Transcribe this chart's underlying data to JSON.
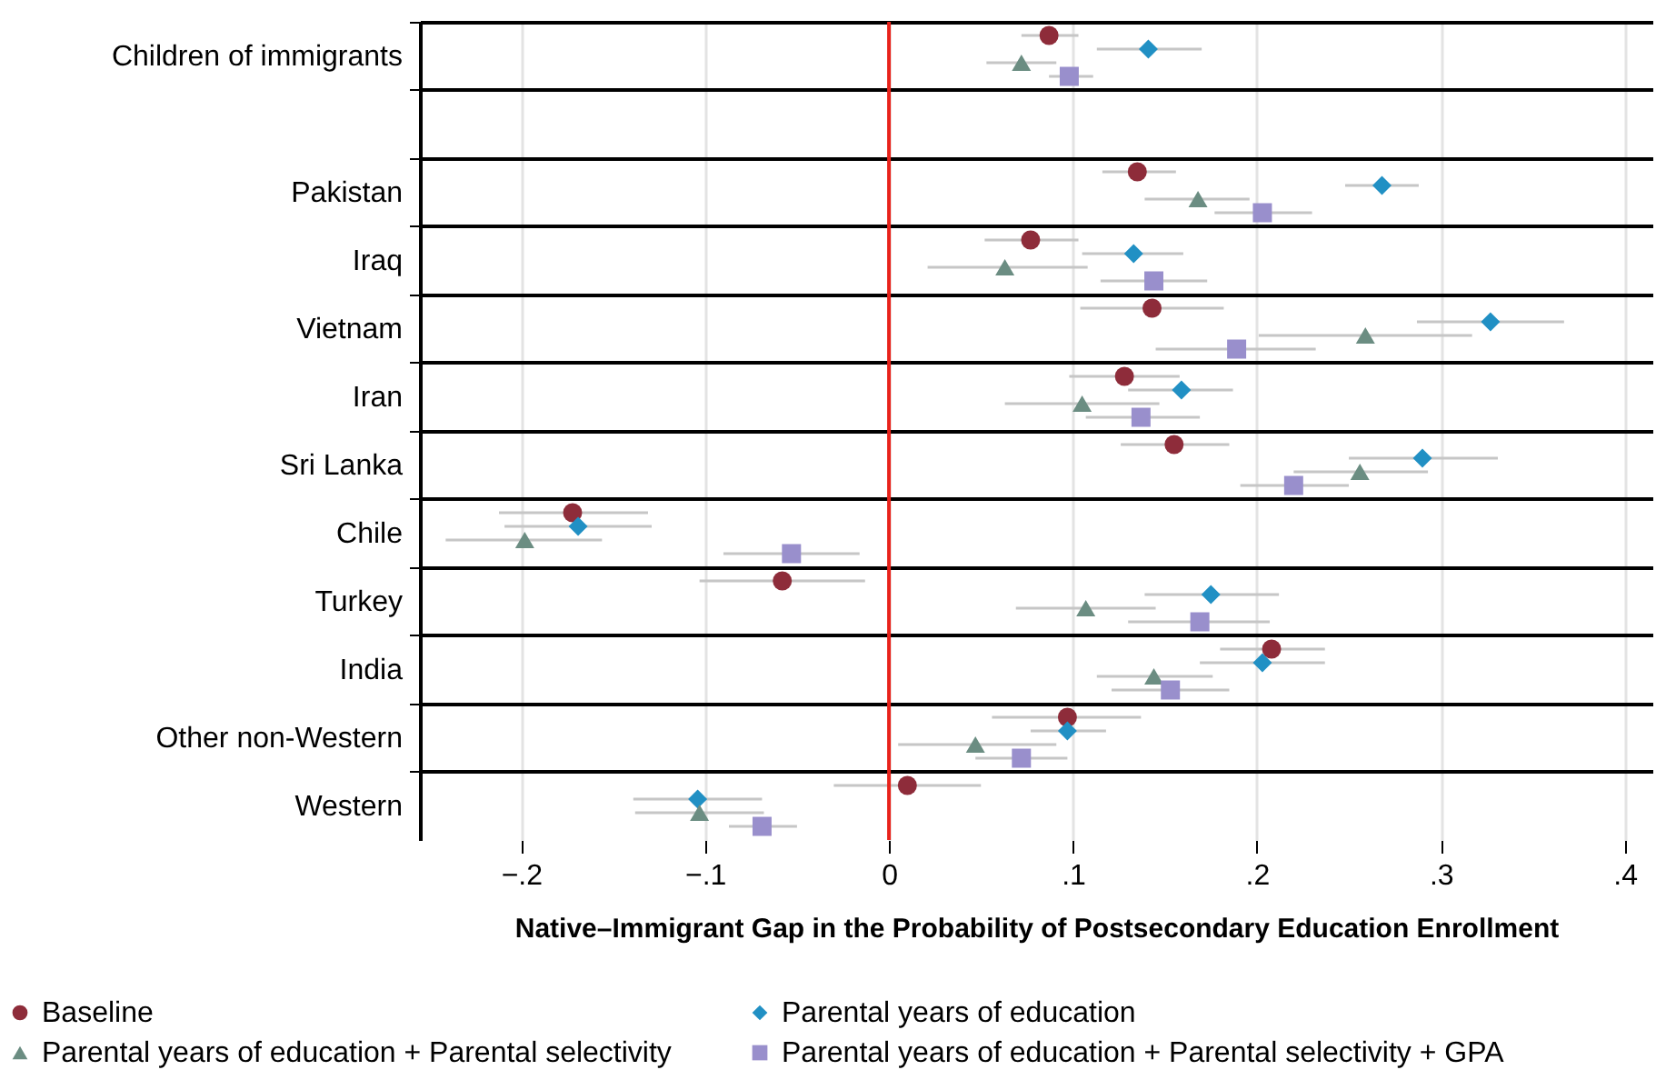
{
  "chart_data": {
    "type": "scatter",
    "orientation": "horizontal",
    "xlabel": "Native–Immigrant Gap in the Probability of Postsecondary Education Enrollment",
    "categories": [
      "Children of immigrants",
      null,
      "Pakistan",
      "Iraq",
      "Vietnam",
      "Iran",
      "Sri Lanka",
      "Chile",
      "Turkey",
      "India",
      "Other non-Western",
      "Western"
    ],
    "xlim": [
      -0.255,
      0.415
    ],
    "xticks": [
      {
        "value": -0.2,
        "label": "−.2"
      },
      {
        "value": -0.1,
        "label": "−.1"
      },
      {
        "value": 0,
        "label": "0"
      },
      {
        "value": 0.1,
        "label": ".1"
      },
      {
        "value": 0.2,
        "label": ".2"
      },
      {
        "value": 0.3,
        "label": ".3"
      },
      {
        "value": 0.4,
        "label": ".4"
      }
    ],
    "grid": "x",
    "legend": "bottom",
    "ref_lines": [
      {
        "axis": "x",
        "value": 0,
        "color": "#e8231b"
      }
    ],
    "series": [
      {
        "name": "Baseline",
        "color": "#8e2c3a",
        "marker": "circle",
        "values": [
          0.087,
          null,
          0.135,
          0.077,
          0.143,
          0.128,
          0.155,
          -0.172,
          -0.058,
          0.208,
          0.097,
          0.01
        ],
        "errors": [
          [
            0.072,
            0.103
          ],
          null,
          [
            0.116,
            0.156
          ],
          [
            0.052,
            0.103
          ],
          [
            0.104,
            0.182
          ],
          [
            0.098,
            0.158
          ],
          [
            0.126,
            0.185
          ],
          [
            -0.212,
            -0.131
          ],
          [
            -0.103,
            -0.013
          ],
          [
            0.18,
            0.237
          ],
          [
            0.056,
            0.137
          ],
          [
            -0.03,
            0.05
          ]
        ]
      },
      {
        "name": "Parental years of education",
        "color": "#2190c4",
        "marker": "diamond",
        "values": [
          0.141,
          null,
          0.268,
          0.133,
          0.327,
          0.159,
          0.29,
          -0.169,
          0.175,
          0.203,
          0.097,
          -0.104
        ],
        "errors": [
          [
            0.113,
            0.17
          ],
          null,
          [
            0.248,
            0.288
          ],
          [
            0.105,
            0.16
          ],
          [
            0.287,
            0.367
          ],
          [
            0.13,
            0.187
          ],
          [
            0.25,
            0.331
          ],
          [
            -0.209,
            -0.129
          ],
          [
            0.139,
            0.212
          ],
          [
            0.169,
            0.237
          ],
          [
            0.077,
            0.118
          ],
          [
            -0.139,
            -0.069
          ]
        ]
      },
      {
        "name": "Parental years of education + Parental selectivity",
        "color": "#6b8d82",
        "marker": "triangle",
        "values": [
          0.072,
          null,
          0.168,
          0.063,
          0.259,
          0.105,
          0.256,
          -0.198,
          0.107,
          0.144,
          0.047,
          -0.103
        ],
        "errors": [
          [
            0.053,
            0.091
          ],
          null,
          [
            0.139,
            0.196
          ],
          [
            0.021,
            0.108
          ],
          [
            0.201,
            0.317
          ],
          [
            0.063,
            0.147
          ],
          [
            0.22,
            0.293
          ],
          [
            -0.241,
            -0.156
          ],
          [
            0.069,
            0.145
          ],
          [
            0.113,
            0.176
          ],
          [
            0.005,
            0.091
          ],
          [
            -0.138,
            -0.068
          ]
        ]
      },
      {
        "name": "Parental years of education + Parental selectivity + GPA",
        "color": "#998fcc",
        "marker": "square",
        "values": [
          0.098,
          null,
          0.203,
          0.144,
          0.189,
          0.137,
          0.22,
          -0.053,
          0.169,
          0.153,
          0.072,
          -0.069
        ],
        "errors": [
          [
            0.087,
            0.111
          ],
          null,
          [
            0.177,
            0.23
          ],
          [
            0.115,
            0.173
          ],
          [
            0.145,
            0.232
          ],
          [
            0.107,
            0.169
          ],
          [
            0.191,
            0.25
          ],
          [
            -0.09,
            -0.016
          ],
          [
            0.13,
            0.207
          ],
          [
            0.121,
            0.185
          ],
          [
            0.047,
            0.097
          ],
          [
            -0.087,
            -0.05
          ]
        ]
      }
    ]
  }
}
